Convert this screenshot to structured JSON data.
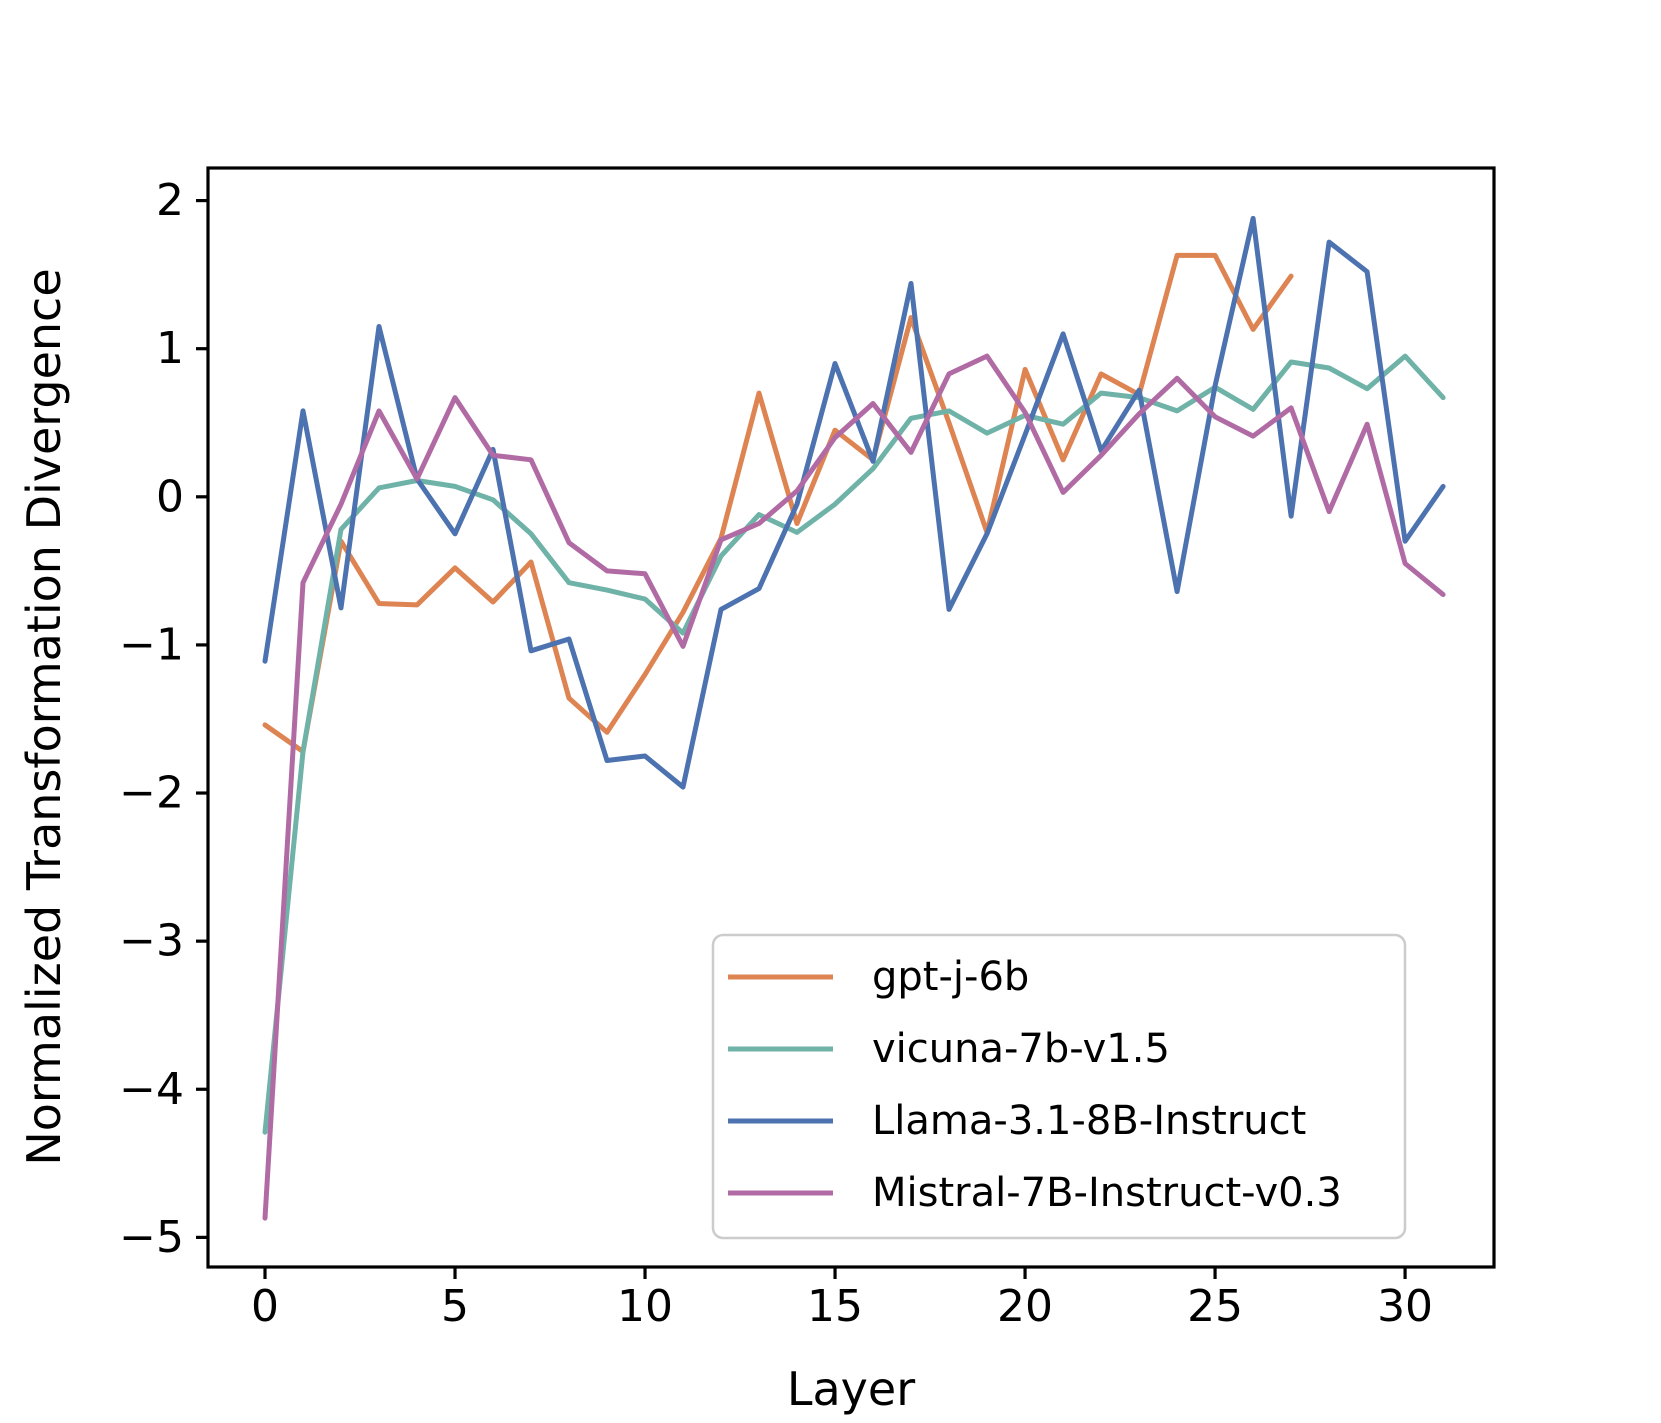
{
  "figure": {
    "background": "#ffffff"
  },
  "chart_data": {
    "type": "line",
    "title": "",
    "xlabel": "Layer",
    "ylabel": "Normalized Transformation Divergence",
    "grid": false,
    "xlim": [
      -1.5,
      32.34
    ],
    "ylim": [
      -5.2,
      2.22
    ],
    "xticks": {
      "values": [
        0,
        5,
        10,
        15,
        20,
        25,
        30
      ],
      "labels": [
        "0",
        "5",
        "10",
        "15",
        "20",
        "25",
        "30"
      ]
    },
    "yticks": {
      "values": [
        2,
        1,
        0,
        -1,
        -2,
        -3,
        -4,
        -5
      ],
      "labels": [
        "2",
        "1",
        "0",
        "−1",
        "−2",
        "−3",
        "−4",
        "−5"
      ]
    },
    "legend": {
      "position": "lower-right-inside",
      "border_color": "#cccccc",
      "background": "#ffffff",
      "entries": [
        "gpt-j-6b",
        "vicuna-7b-v1.5",
        "Llama-3.1-8B-Instruct",
        "Mistral-7B-Instruct-v0.3"
      ]
    },
    "series": [
      {
        "name": "gpt-j-6b",
        "color": "#DD8452",
        "x": [
          0,
          1,
          2,
          3,
          4,
          5,
          6,
          7,
          8,
          9,
          10,
          11,
          12,
          13,
          14,
          15,
          16,
          17,
          18,
          19,
          20,
          21,
          22,
          23,
          24,
          25,
          26,
          27
        ],
        "values": [
          -1.54,
          -1.72,
          -0.3,
          -0.72,
          -0.73,
          -0.48,
          -0.71,
          -0.44,
          -1.36,
          -1.59,
          -1.2,
          -0.78,
          -0.28,
          0.7,
          -0.18,
          0.45,
          0.25,
          1.21,
          0.5,
          -0.24,
          0.86,
          0.25,
          0.83,
          0.69,
          1.63,
          1.63,
          1.13,
          1.49
        ]
      },
      {
        "name": "vicuna-7b-v1.5",
        "color": "#6FB2A8",
        "x": [
          0,
          1,
          2,
          3,
          4,
          5,
          6,
          7,
          8,
          9,
          10,
          11,
          12,
          13,
          14,
          15,
          16,
          17,
          18,
          19,
          20,
          21,
          22,
          23,
          24,
          25,
          26,
          27,
          28,
          29,
          30,
          31
        ],
        "values": [
          -4.29,
          -1.72,
          -0.22,
          0.06,
          0.11,
          0.07,
          -0.02,
          -0.25,
          -0.58,
          -0.63,
          -0.69,
          -0.92,
          -0.4,
          -0.12,
          -0.24,
          -0.05,
          0.19,
          0.53,
          0.58,
          0.43,
          0.55,
          0.49,
          0.7,
          0.67,
          0.58,
          0.74,
          0.59,
          0.91,
          0.87,
          0.73,
          0.95,
          0.67
        ]
      },
      {
        "name": "Llama-3.1-8B-Instruct",
        "color": "#4C72B0",
        "x": [
          0,
          1,
          2,
          3,
          4,
          5,
          6,
          7,
          8,
          9,
          10,
          11,
          12,
          13,
          14,
          15,
          16,
          17,
          18,
          19,
          20,
          21,
          22,
          23,
          24,
          25,
          26,
          27,
          28,
          29,
          30,
          31
        ],
        "values": [
          -1.11,
          0.58,
          -0.75,
          1.15,
          0.12,
          -0.25,
          0.32,
          -1.04,
          -0.96,
          -1.78,
          -1.75,
          -1.96,
          -0.76,
          -0.62,
          -0.05,
          0.9,
          0.24,
          1.44,
          -0.76,
          -0.25,
          0.42,
          1.1,
          0.31,
          0.72,
          -0.64,
          0.75,
          1.88,
          -0.13,
          1.72,
          1.52,
          -0.3,
          0.07
        ]
      },
      {
        "name": "Mistral-7B-Instruct-v0.3",
        "color": "#B16BA4",
        "x": [
          0,
          1,
          2,
          3,
          4,
          5,
          6,
          7,
          8,
          9,
          10,
          11,
          12,
          13,
          14,
          15,
          16,
          17,
          18,
          19,
          20,
          21,
          22,
          23,
          24,
          25,
          26,
          27,
          28,
          29,
          30,
          31
        ],
        "values": [
          -4.87,
          -0.58,
          -0.05,
          0.58,
          0.12,
          0.67,
          0.28,
          0.25,
          -0.31,
          -0.5,
          -0.52,
          -1.01,
          -0.29,
          -0.18,
          0.04,
          0.4,
          0.63,
          0.3,
          0.83,
          0.95,
          0.57,
          0.03,
          0.28,
          0.56,
          0.8,
          0.54,
          0.41,
          0.6,
          -0.1,
          0.49,
          -0.45,
          -0.66
        ]
      }
    ]
  }
}
